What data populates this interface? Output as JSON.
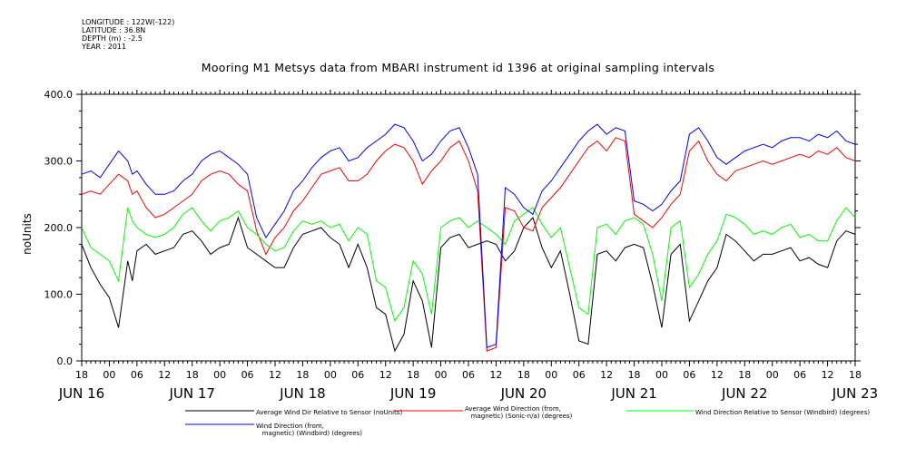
{
  "meta": {
    "longitude": "LONGITUDE : 122W(-122)",
    "latitude": "LATITUDE : 36.8N",
    "depth": "DEPTH (m) : -2.5",
    "year": "YEAR : 2011"
  },
  "chart_data": {
    "type": "line",
    "title": "Mooring M1 Metsys data from MBARI instrument id 1396 at original sampling intervals",
    "ylabel": "noUnits",
    "xlabel": "",
    "ylim": [
      0,
      400
    ],
    "y_ticks": [
      0,
      100,
      200,
      300,
      400
    ],
    "x_range_hours": [
      0,
      168
    ],
    "x_hour_ticks": [
      "18",
      "00",
      "06",
      "12",
      "18",
      "00",
      "06",
      "12",
      "18",
      "00",
      "06",
      "12",
      "18",
      "00",
      "06",
      "12",
      "18",
      "00",
      "06",
      "12",
      "18",
      "00",
      "06",
      "12",
      "18",
      "00",
      "06",
      "12",
      "18"
    ],
    "x_day_labels": [
      "JUN 16",
      "JUN 17",
      "JUN 18",
      "JUN 19",
      "JUN 20",
      "JUN 21",
      "JUN 22",
      "JUN 23"
    ],
    "legend": [
      {
        "text": "Average Wind Dir Relative to Sensor (noUnits)",
        "color": "#000000"
      },
      {
        "text": "Average Wind Direction (from,\n   magnetic) (Sonic-n/a) (degrees)",
        "color": "#ff0000"
      },
      {
        "text": "Wind Direction Relative to Sensor (Windbird) (degrees)",
        "color": "#00ff00"
      },
      {
        "text": "Wind Direction (from,\n   magnetic) (Windbird) (degrees)",
        "color": "#0000ff"
      }
    ],
    "series": [
      {
        "name": "Average Wind Dir Relative to Sensor (noUnits)",
        "color": "#000000",
        "x": [
          0,
          2,
          4,
          6,
          8,
          10,
          11,
          12,
          14,
          16,
          18,
          20,
          22,
          24,
          26,
          28,
          30,
          32,
          34,
          36,
          38,
          40,
          42,
          44,
          46,
          48,
          50,
          52,
          54,
          56,
          58,
          60,
          62,
          64,
          66,
          68,
          70,
          72,
          74,
          76,
          78,
          80,
          82,
          84,
          86,
          88,
          90,
          92,
          94,
          96,
          98,
          100,
          102,
          104,
          106,
          108,
          110,
          112,
          114,
          116,
          118,
          120,
          122,
          124,
          126,
          128,
          130,
          132,
          134,
          136,
          138,
          140,
          142,
          144,
          146,
          148,
          150,
          152,
          154,
          156,
          158,
          160,
          162,
          164,
          166,
          168
        ],
        "y": [
          175,
          140,
          115,
          95,
          50,
          150,
          120,
          165,
          175,
          160,
          165,
          170,
          190,
          195,
          180,
          160,
          170,
          175,
          215,
          170,
          160,
          150,
          140,
          140,
          170,
          190,
          195,
          200,
          185,
          175,
          140,
          175,
          140,
          80,
          70,
          15,
          40,
          120,
          90,
          20,
          170,
          185,
          190,
          170,
          175,
          180,
          175,
          150,
          165,
          200,
          215,
          170,
          140,
          165,
          100,
          30,
          25,
          160,
          165,
          150,
          170,
          175,
          170,
          115,
          50,
          160,
          175,
          60,
          90,
          120,
          140,
          190,
          180,
          165,
          150,
          160,
          160,
          165,
          170,
          150,
          155,
          145,
          140,
          180,
          195,
          190
        ]
      },
      {
        "name": "Average Wind Direction (from, magnetic) (Sonic-n/a) (degrees)",
        "color": "#ff0000",
        "x": [
          0,
          2,
          4,
          6,
          8,
          10,
          11,
          12,
          14,
          16,
          18,
          20,
          22,
          24,
          26,
          28,
          30,
          32,
          34,
          36,
          38,
          40,
          42,
          44,
          46,
          48,
          50,
          52,
          54,
          56,
          58,
          60,
          62,
          64,
          66,
          68,
          70,
          72,
          74,
          76,
          78,
          80,
          82,
          84,
          86,
          88,
          90,
          92,
          94,
          96,
          98,
          100,
          102,
          104,
          106,
          108,
          110,
          112,
          114,
          116,
          118,
          120,
          122,
          124,
          126,
          128,
          130,
          132,
          134,
          136,
          138,
          140,
          142,
          144,
          146,
          148,
          150,
          152,
          154,
          156,
          158,
          160,
          162,
          164,
          166,
          168
        ],
        "y": [
          250,
          255,
          250,
          265,
          280,
          270,
          250,
          255,
          230,
          215,
          220,
          230,
          240,
          250,
          270,
          280,
          285,
          280,
          265,
          255,
          195,
          160,
          185,
          200,
          225,
          240,
          260,
          280,
          285,
          290,
          270,
          270,
          280,
          300,
          315,
          325,
          320,
          300,
          265,
          285,
          300,
          320,
          330,
          300,
          255,
          15,
          20,
          230,
          225,
          200,
          195,
          230,
          245,
          260,
          280,
          300,
          320,
          330,
          315,
          335,
          330,
          220,
          210,
          200,
          215,
          235,
          250,
          315,
          330,
          300,
          280,
          270,
          285,
          290,
          295,
          300,
          295,
          300,
          305,
          310,
          305,
          315,
          310,
          320,
          305,
          300
        ]
      },
      {
        "name": "Wind Direction Relative to Sensor (Windbird) (degrees)",
        "color": "#00ff00",
        "x": [
          0,
          2,
          4,
          6,
          8,
          10,
          11,
          12,
          14,
          16,
          18,
          20,
          22,
          24,
          26,
          28,
          30,
          32,
          34,
          36,
          38,
          40,
          42,
          44,
          46,
          48,
          50,
          52,
          54,
          56,
          58,
          60,
          62,
          64,
          66,
          68,
          70,
          72,
          74,
          76,
          78,
          80,
          82,
          84,
          86,
          88,
          90,
          92,
          94,
          96,
          98,
          100,
          102,
          104,
          106,
          108,
          110,
          112,
          114,
          116,
          118,
          120,
          122,
          124,
          126,
          128,
          130,
          132,
          134,
          136,
          138,
          140,
          142,
          144,
          146,
          148,
          150,
          152,
          154,
          156,
          158,
          160,
          162,
          164,
          166,
          168
        ],
        "y": [
          200,
          170,
          160,
          150,
          120,
          230,
          210,
          200,
          190,
          185,
          190,
          200,
          220,
          230,
          210,
          195,
          210,
          215,
          225,
          200,
          190,
          175,
          165,
          170,
          195,
          210,
          205,
          210,
          200,
          205,
          180,
          200,
          190,
          120,
          110,
          60,
          80,
          150,
          130,
          70,
          200,
          210,
          215,
          200,
          210,
          200,
          190,
          175,
          210,
          220,
          230,
          205,
          185,
          200,
          140,
          80,
          70,
          200,
          205,
          190,
          210,
          215,
          205,
          160,
          90,
          200,
          210,
          110,
          130,
          160,
          180,
          220,
          215,
          205,
          190,
          195,
          190,
          200,
          205,
          185,
          190,
          180,
          180,
          210,
          230,
          215
        ]
      },
      {
        "name": "Wind Direction (from, magnetic) (Windbird) (degrees)",
        "color": "#0000ff",
        "x": [
          0,
          2,
          4,
          6,
          8,
          10,
          11,
          12,
          14,
          16,
          18,
          20,
          22,
          24,
          26,
          28,
          30,
          32,
          34,
          36,
          38,
          40,
          42,
          44,
          46,
          48,
          50,
          52,
          54,
          56,
          58,
          60,
          62,
          64,
          66,
          68,
          70,
          72,
          74,
          76,
          78,
          80,
          82,
          84,
          86,
          88,
          90,
          92,
          94,
          96,
          98,
          100,
          102,
          104,
          106,
          108,
          110,
          112,
          114,
          116,
          118,
          120,
          122,
          124,
          126,
          128,
          130,
          132,
          134,
          136,
          138,
          140,
          142,
          144,
          146,
          148,
          150,
          152,
          154,
          156,
          158,
          160,
          162,
          164,
          166,
          168
        ],
        "y": [
          280,
          285,
          275,
          295,
          315,
          300,
          280,
          285,
          265,
          250,
          250,
          255,
          270,
          280,
          300,
          310,
          315,
          305,
          295,
          280,
          215,
          185,
          205,
          225,
          255,
          270,
          290,
          305,
          315,
          320,
          300,
          305,
          320,
          330,
          340,
          355,
          350,
          330,
          300,
          310,
          330,
          345,
          350,
          320,
          280,
          20,
          25,
          260,
          250,
          230,
          220,
          255,
          270,
          290,
          310,
          330,
          345,
          355,
          340,
          350,
          345,
          240,
          235,
          225,
          235,
          255,
          270,
          340,
          350,
          330,
          305,
          295,
          305,
          315,
          320,
          325,
          320,
          330,
          335,
          335,
          330,
          340,
          335,
          345,
          330,
          325
        ]
      }
    ]
  }
}
